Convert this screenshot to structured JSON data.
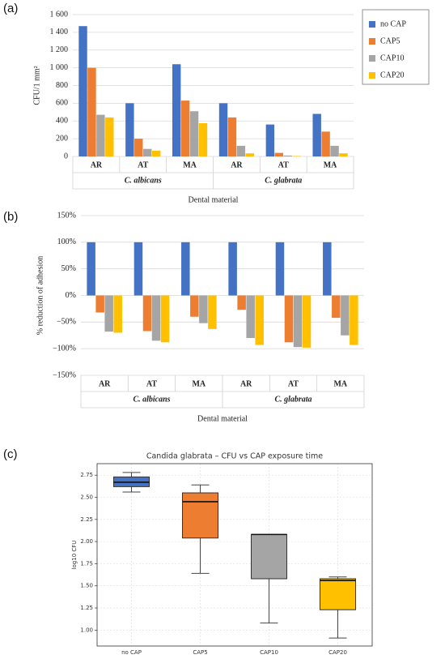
{
  "chart_data": [
    {
      "type": "bar",
      "label": "(a)",
      "ylabel": "CFU/1 mm²",
      "xlabel": "Dental material",
      "categories": [
        "AR",
        "AT",
        "MA",
        "AR",
        "AT",
        "MA"
      ],
      "groups": [
        "C. albicans",
        "C. glabrata"
      ],
      "series": [
        {
          "name": "no CAP",
          "color": "#4472c4",
          "values": [
            1470,
            600,
            1040,
            600,
            360,
            480
          ]
        },
        {
          "name": "CAP5",
          "color": "#ed7d31",
          "values": [
            1000,
            200,
            630,
            440,
            40,
            280
          ]
        },
        {
          "name": "CAP10",
          "color": "#a5a5a5",
          "values": [
            470,
            85,
            510,
            120,
            10,
            120
          ]
        },
        {
          "name": "CAP20",
          "color": "#ffc000",
          "values": [
            440,
            65,
            375,
            35,
            5,
            35
          ]
        }
      ],
      "ylim": [
        0,
        1600
      ],
      "yticks": [
        0,
        200,
        400,
        600,
        800,
        {
          "value": 1000,
          "label": "1 000"
        },
        {
          "value": 1200,
          "label": "1 200"
        },
        {
          "value": 1400,
          "label": "1 400"
        },
        {
          "value": 1600,
          "label": "1 600"
        }
      ],
      "grid": true,
      "legend": "right"
    },
    {
      "type": "bar",
      "label": "(b)",
      "ylabel": "% reduction of adhesion",
      "xlabel": "Dental material",
      "categories": [
        "AR",
        "AT",
        "MA",
        "AR",
        "AT",
        "MA"
      ],
      "groups": [
        "C. albicans",
        "C. glabrata"
      ],
      "series": [
        {
          "color": "#4472c4",
          "values": [
            100,
            100,
            100,
            100,
            100,
            100
          ]
        },
        {
          "color": "#ed7d31",
          "values": [
            -32,
            -67,
            -40,
            -27,
            -88,
            -42
          ]
        },
        {
          "color": "#a5a5a5",
          "values": [
            -68,
            -85,
            -52,
            -80,
            -97,
            -75
          ]
        },
        {
          "color": "#ffc000",
          "values": [
            -70,
            -88,
            -63,
            -93,
            -98,
            -93
          ]
        }
      ],
      "ylim": [
        -150,
        150
      ],
      "yticks": [
        {
          "value": -150,
          "label": "−150%"
        },
        {
          "value": -100,
          "label": "−100%"
        },
        {
          "value": -50,
          "label": "−50%"
        },
        {
          "value": 0,
          "label": "0%"
        },
        {
          "value": 50,
          "label": "50%"
        },
        {
          "value": 100,
          "label": "100%"
        },
        {
          "value": 150,
          "label": "150%"
        }
      ],
      "grid": true
    },
    {
      "type": "box",
      "label": "(c)",
      "title": "Candida glabrata – CFU vs CAP exposure time",
      "ylabel": "log10 CFU",
      "categories": [
        "no CAP",
        "CAP5",
        "CAP10",
        "CAP20"
      ],
      "colors": [
        "#4472c4",
        "#ed7d31",
        "#a5a5a5",
        "#ffc000"
      ],
      "boxes": [
        {
          "whislo": 2.56,
          "q1": 2.62,
          "med": 2.67,
          "q3": 2.73,
          "whishi": 2.78
        },
        {
          "whislo": 1.64,
          "q1": 2.04,
          "med": 2.45,
          "q3": 2.55,
          "whishi": 2.64
        },
        {
          "whislo": 1.08,
          "q1": 1.58,
          "med": 2.08,
          "q3": 2.08,
          "whishi": 2.08
        },
        {
          "whislo": 0.91,
          "q1": 1.23,
          "med": 1.56,
          "q3": 1.58,
          "whishi": 1.6
        }
      ],
      "ylim": [
        0.82,
        2.88
      ],
      "yticks": [
        {
          "value": 1,
          "label": "1.00"
        },
        {
          "value": 1.25,
          "label": "1.25"
        },
        {
          "value": 1.5,
          "label": "1.50"
        },
        {
          "value": 1.75,
          "label": "1.75"
        },
        {
          "value": 2,
          "label": "2.00"
        },
        {
          "value": 2.25,
          "label": "2.25"
        },
        {
          "value": 2.5,
          "label": "2.50"
        },
        {
          "value": 2.75,
          "label": "2.75"
        }
      ],
      "grid": true
    }
  ]
}
